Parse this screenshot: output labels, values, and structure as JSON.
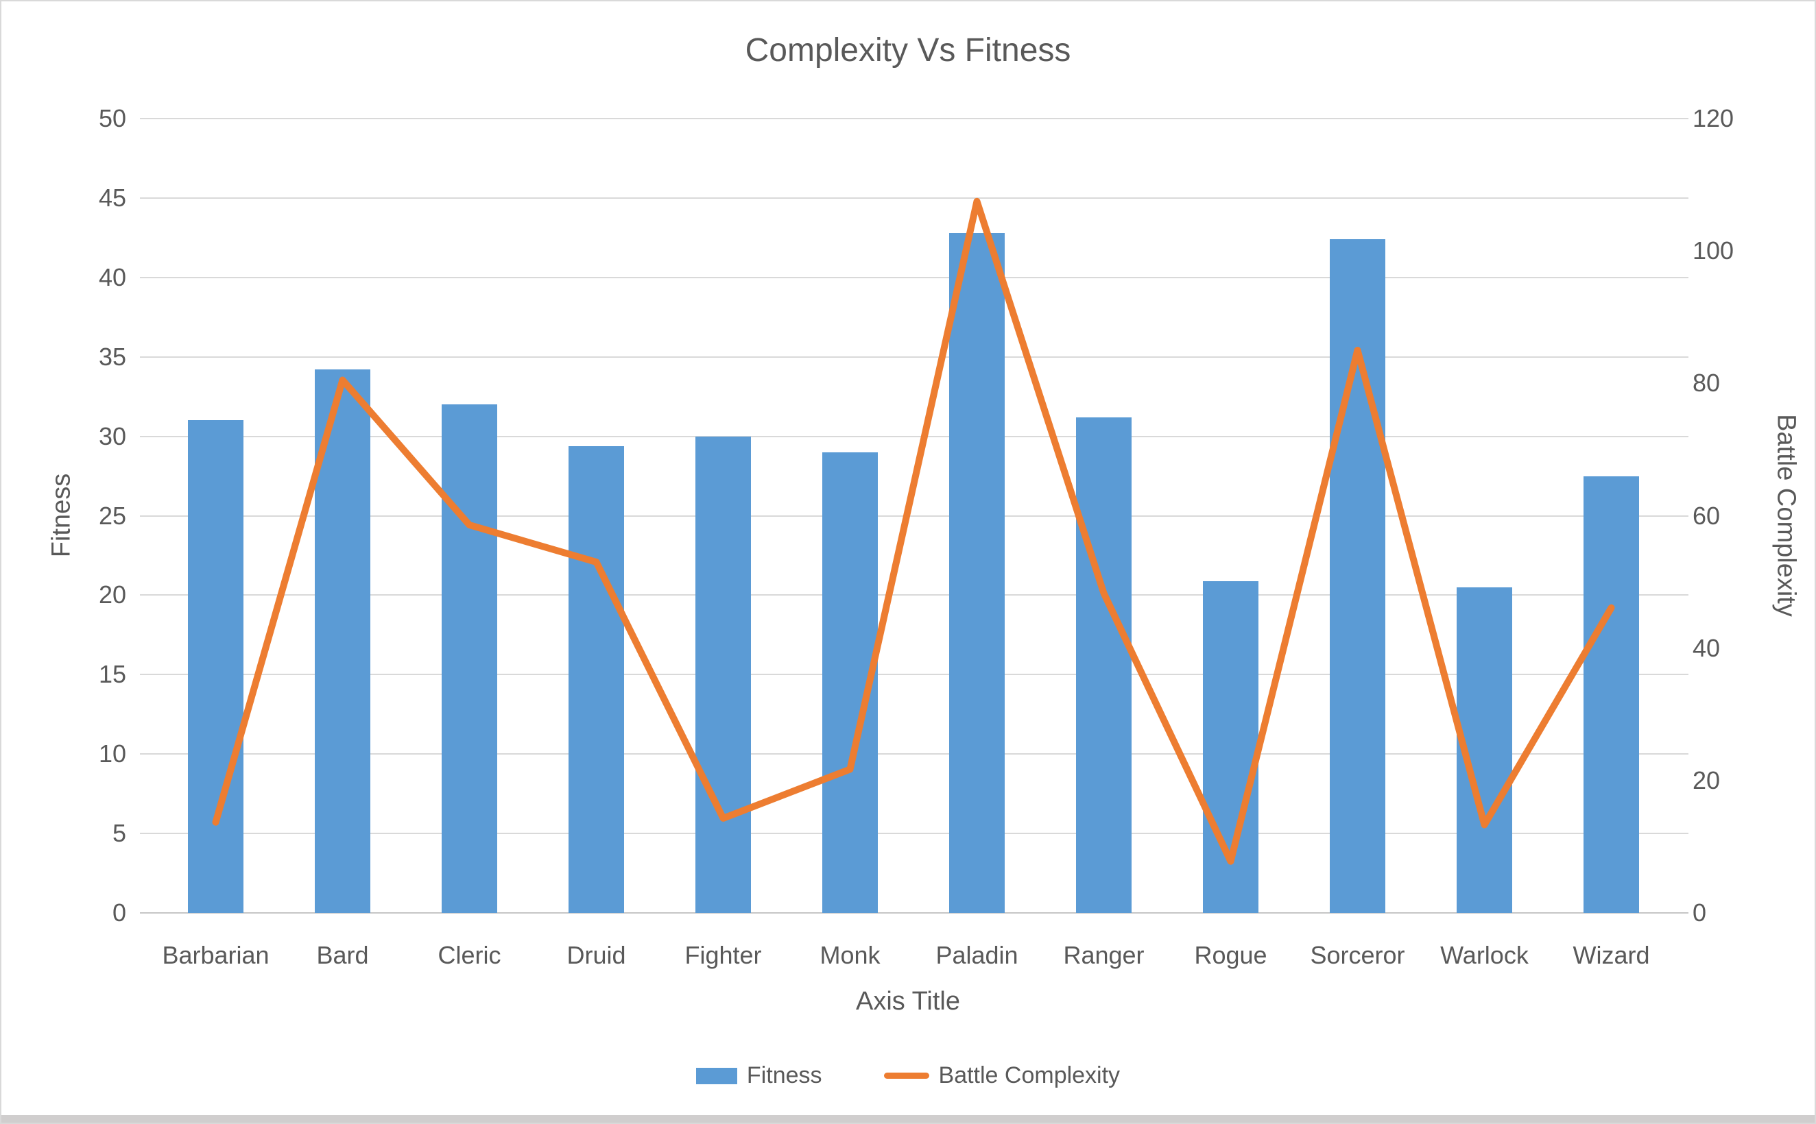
{
  "window": {
    "background": "#ffffff",
    "border_color": "#d9d9d9",
    "bottom_strip_color": "#d0cece",
    "text_color": "#595959"
  },
  "chart_data": {
    "type": "combo-bar-line",
    "title": "Complexity Vs Fitness",
    "categories": [
      "Barbarian",
      "Bard",
      "Cleric",
      "Druid",
      "Fighter",
      "Monk",
      "Paladin",
      "Ranger",
      "Rogue",
      "Sorceror",
      "Warlock",
      "Wizard"
    ],
    "series": [
      {
        "name": "Fitness",
        "type": "bar",
        "axis": "left",
        "color": "#5B9BD5",
        "values": [
          31,
          34.2,
          32,
          29.4,
          30,
          29,
          42.8,
          31.2,
          20.9,
          42.4,
          20.5,
          27.5
        ]
      },
      {
        "name": "Battle Complexity",
        "type": "line",
        "axis": "right",
        "color": "#ED7D31",
        "values": [
          13.7,
          80.5,
          58.6,
          53,
          14.3,
          21.7,
          107.5,
          48.3,
          7.8,
          85,
          13.3,
          46.1
        ]
      }
    ],
    "left_axis": {
      "title": "Fitness",
      "min": 0,
      "max": 50,
      "step": 5,
      "tick_labels": [
        "0",
        "5",
        "10",
        "15",
        "20",
        "25",
        "30",
        "35",
        "40",
        "45",
        "50"
      ]
    },
    "right_axis": {
      "title": "Battle Complexity",
      "min": 0,
      "max": 120,
      "step": 20,
      "tick_labels": [
        "0",
        "20",
        "40",
        "60",
        "80",
        "100",
        "120"
      ]
    },
    "x_axis": {
      "title": "Axis Title"
    },
    "legend": {
      "position": "bottom",
      "entries": [
        {
          "label": "Fitness",
          "swatch": "bar",
          "color": "#5B9BD5"
        },
        {
          "label": "Battle Complexity",
          "swatch": "line",
          "color": "#ED7D31"
        }
      ]
    },
    "grid": {
      "show": true,
      "color": "#d9d9d9"
    }
  }
}
